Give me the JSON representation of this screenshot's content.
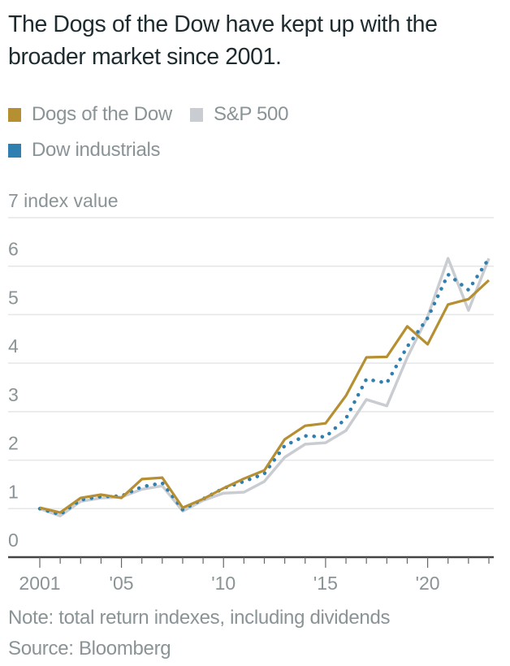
{
  "chart_data": {
    "type": "line",
    "title": "The Dogs of the Dow have kept up with the broader market since 2001.",
    "xlabel": "",
    "ylabel": "index value",
    "ylim": [
      0,
      7
    ],
    "y_ticks": [
      0,
      1,
      2,
      3,
      4,
      5,
      6,
      7
    ],
    "y_tick_labels": [
      "0",
      "1",
      "2",
      "3",
      "4",
      "5",
      "6",
      "7 index value"
    ],
    "xlim": [
      2001,
      2023
    ],
    "x_tick_labels": [
      {
        "year": 2001,
        "label": "2001"
      },
      {
        "year": 2005,
        "label": "'05"
      },
      {
        "year": 2010,
        "label": "'10"
      },
      {
        "year": 2015,
        "label": "'15"
      },
      {
        "year": 2020,
        "label": "'20"
      }
    ],
    "grid": true,
    "legend_position": "top-left",
    "x": [
      2001,
      2002,
      2003,
      2004,
      2005,
      2006,
      2007,
      2008,
      2009,
      2010,
      2011,
      2012,
      2013,
      2014,
      2015,
      2016,
      2017,
      2018,
      2019,
      2020,
      2021,
      2022,
      2023
    ],
    "series": [
      {
        "name": "S&P 500",
        "color": "#c9cdd1",
        "style": "solid",
        "values": [
          1.0,
          0.85,
          1.15,
          1.22,
          1.24,
          1.4,
          1.47,
          0.95,
          1.17,
          1.32,
          1.34,
          1.56,
          2.06,
          2.33,
          2.36,
          2.61,
          3.25,
          3.12,
          4.12,
          4.96,
          6.16,
          5.09,
          6.16
        ]
      },
      {
        "name": "Dow industrials",
        "color": "#2f7fb0",
        "style": "dotted",
        "values": [
          1.0,
          0.88,
          1.18,
          1.25,
          1.26,
          1.45,
          1.53,
          0.98,
          1.2,
          1.42,
          1.56,
          1.72,
          2.3,
          2.5,
          2.48,
          2.86,
          3.67,
          3.59,
          4.34,
          4.93,
          5.83,
          5.51,
          6.16
        ]
      },
      {
        "name": "Dogs of the Dow",
        "color": "#b58f32",
        "style": "solid",
        "values": [
          1.02,
          0.92,
          1.22,
          1.29,
          1.22,
          1.61,
          1.64,
          1.02,
          1.2,
          1.42,
          1.62,
          1.79,
          2.43,
          2.71,
          2.76,
          3.33,
          4.12,
          4.13,
          4.76,
          4.39,
          5.21,
          5.32,
          5.71
        ]
      }
    ]
  },
  "legend": [
    {
      "name": "Dogs of the Dow",
      "color": "#b58f32"
    },
    {
      "name": "S&P 500",
      "color": "#c9cdd1"
    },
    {
      "name": "Dow industrials",
      "color": "#2f7fb0"
    }
  ],
  "footer": {
    "note": "Note: total return indexes, including dividends",
    "source": "Source: Bloomberg"
  }
}
